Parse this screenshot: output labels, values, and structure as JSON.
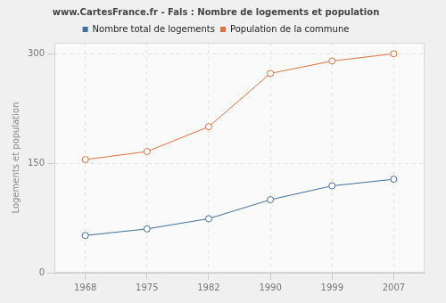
{
  "chart_data": {
    "type": "line",
    "title": "www.CartesFrance.fr - Fals : Nombre de logements et population",
    "y_label": "Logements et population",
    "categories": [
      "1968",
      "1975",
      "1982",
      "1990",
      "1999",
      "2007"
    ],
    "series": [
      {
        "name": "Nombre total de logements",
        "color": "#3f6fa0",
        "values": [
          51,
          60,
          74,
          100,
          119,
          128
        ]
      },
      {
        "name": "Population de la commune",
        "color": "#e0703e",
        "values": [
          155,
          166,
          200,
          273,
          290,
          300
        ]
      }
    ],
    "ylim": [
      0,
      315
    ],
    "yticks": [
      0,
      150,
      300
    ],
    "grid": true,
    "legend": "top",
    "marker": "circle"
  }
}
